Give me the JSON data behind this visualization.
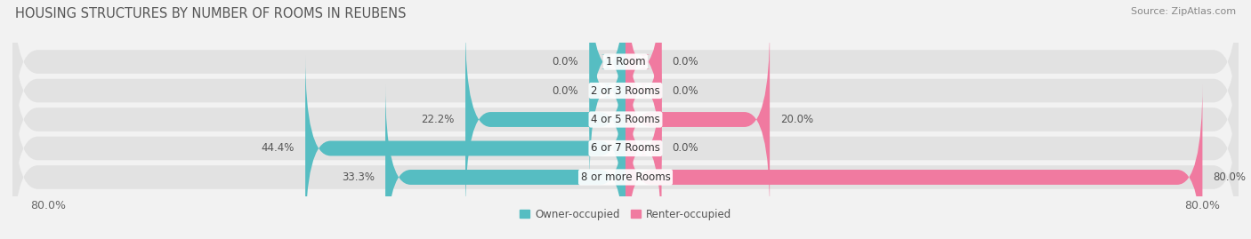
{
  "title": "HOUSING STRUCTURES BY NUMBER OF ROOMS IN REUBENS",
  "source": "Source: ZipAtlas.com",
  "categories": [
    "1 Room",
    "2 or 3 Rooms",
    "4 or 5 Rooms",
    "6 or 7 Rooms",
    "8 or more Rooms"
  ],
  "owner_values": [
    0.0,
    0.0,
    22.2,
    44.4,
    33.3
  ],
  "renter_values": [
    0.0,
    0.0,
    20.0,
    0.0,
    80.0
  ],
  "owner_color": "#56bdc2",
  "renter_color": "#f07aa0",
  "owner_label": "Owner-occupied",
  "renter_label": "Renter-occupied",
  "xlim_left": -85,
  "xlim_right": 85,
  "xtick_left_val": -80.0,
  "xtick_right_val": 80.0,
  "bar_height": 0.52,
  "bg_bar_height": 0.82,
  "background_color": "#f2f2f2",
  "bg_bar_color": "#e2e2e2",
  "min_bar_val": 5.0,
  "title_fontsize": 10.5,
  "source_fontsize": 8,
  "label_fontsize": 8.5,
  "tick_fontsize": 9,
  "cat_label_fontsize": 8.5
}
